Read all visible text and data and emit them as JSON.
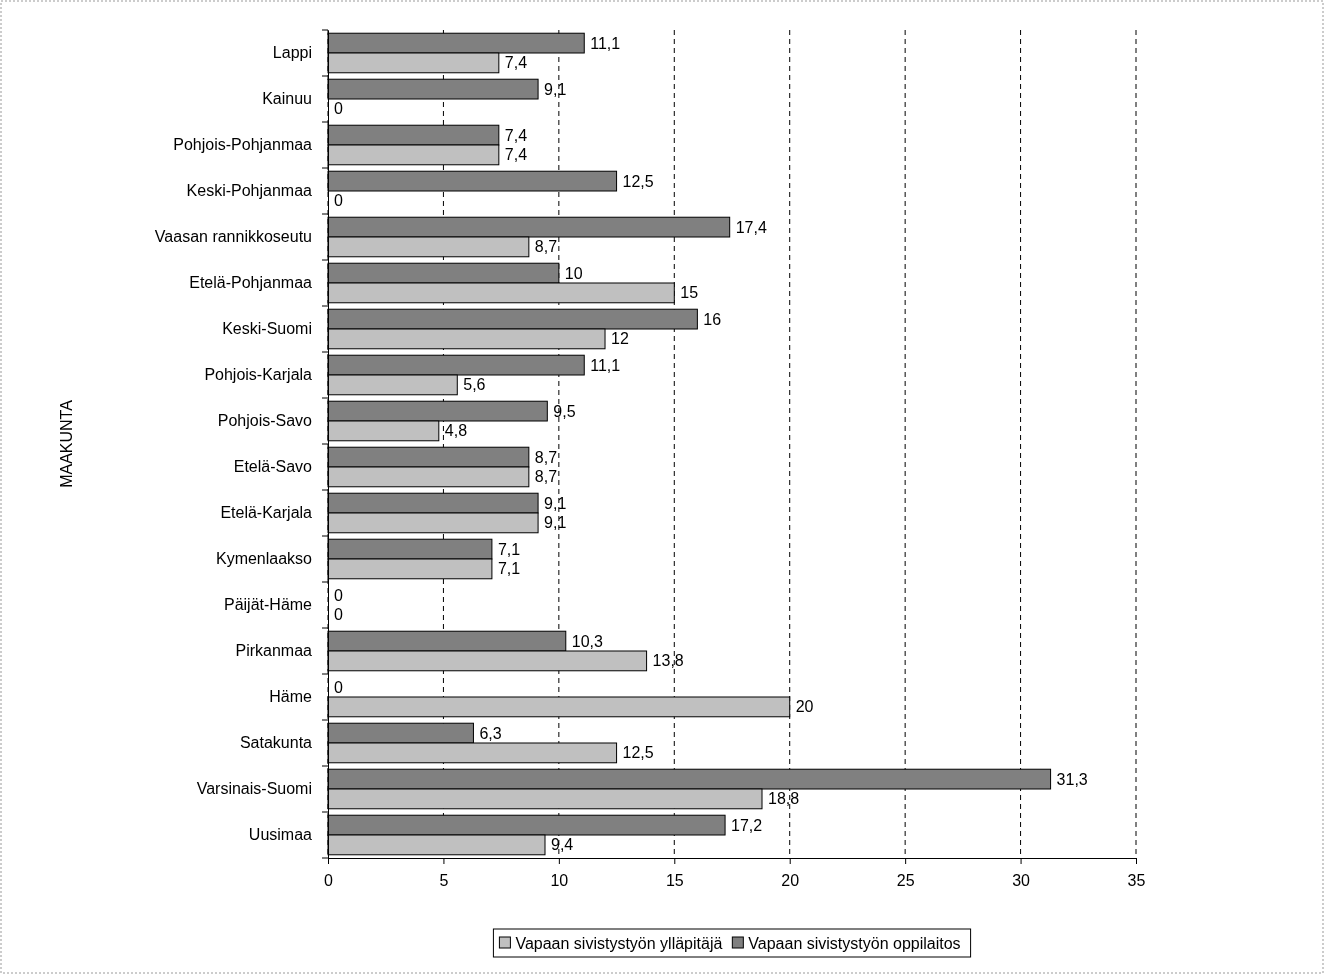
{
  "chart_data": {
    "type": "bar",
    "orientation": "horizontal",
    "ylabel": "MAAKUNTA",
    "categories": [
      "Lappi",
      "Kainuu",
      "Pohjois-Pohjanmaa",
      "Keski-Pohjanmaa",
      "Vaasan rannikkoseutu",
      "Etelä-Pohjanmaa",
      "Keski-Suomi",
      "Pohjois-Karjala",
      "Pohjois-Savo",
      "Etelä-Savo",
      "Etelä-Karjala",
      "Kymenlaakso",
      "Päijät-Häme",
      "Pirkanmaa",
      "Häme",
      "Satakunta",
      "Varsinais-Suomi",
      "Uusimaa"
    ],
    "series": [
      {
        "name": "Vapaan sivistystyön oppilaitos",
        "color": "#808080",
        "values": [
          11.1,
          9.1,
          7.4,
          12.5,
          17.4,
          10,
          16,
          11.1,
          9.5,
          8.7,
          9.1,
          7.1,
          0,
          10.3,
          0,
          6.3,
          31.3,
          17.2
        ],
        "value_labels": [
          "11,1",
          "9,1",
          "7,4",
          "12,5",
          "17,4",
          "10",
          "16",
          "11,1",
          "9,5",
          "8,7",
          "9,1",
          "7,1",
          "0",
          "10,3",
          "0",
          "6,3",
          "31,3",
          "17,2"
        ]
      },
      {
        "name": "Vapaan sivistystyön ylläpitäjä",
        "color": "#c0c0c0",
        "values": [
          7.4,
          0,
          7.4,
          0,
          8.7,
          15,
          12,
          5.6,
          4.8,
          8.7,
          9.1,
          7.1,
          0,
          13.8,
          20,
          12.5,
          18.8,
          9.4
        ],
        "value_labels": [
          "7,4",
          "0",
          "7,4",
          "0",
          "8,7",
          "15",
          "12",
          "5,6",
          "4,8",
          "8,7",
          "9,1",
          "7,1",
          "0",
          "13,8",
          "20",
          "12,5",
          "18,8",
          "9,4"
        ]
      }
    ],
    "xlim": [
      0,
      35
    ],
    "xticks": [
      0,
      5,
      10,
      15,
      20,
      25,
      30,
      35
    ],
    "grid": "x",
    "legend": "bottom"
  }
}
